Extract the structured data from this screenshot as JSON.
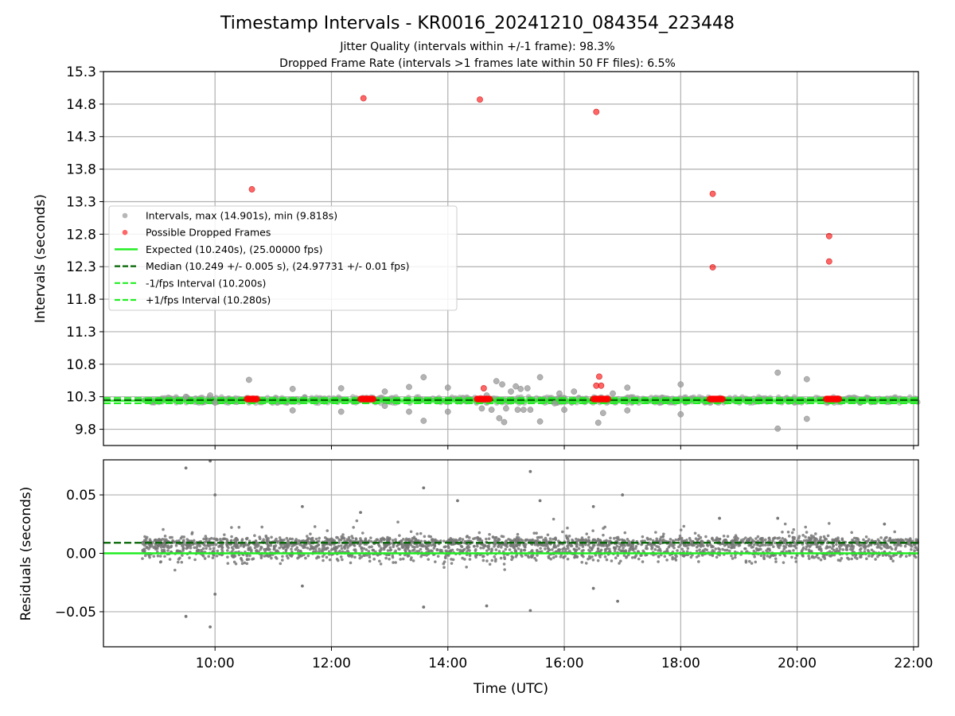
{
  "header": {
    "title": "Timestamp Intervals - KR0016_20241210_084354_223448",
    "subtitle_1": "Jitter Quality (intervals within +/-1 frame): 98.3%",
    "subtitle_2": "Dropped Frame Rate (intervals >1 frames late within 50 FF files): 6.5%"
  },
  "colors": {
    "intervals": "#999999",
    "dropped": "#ff0000",
    "expected": "#22ee22",
    "median": "#006400",
    "fps_band": "#22ee22",
    "residuals": "#777777"
  },
  "chart_data": [
    {
      "type": "scatter",
      "panel": "intervals",
      "ylabel": "Intervals (seconds)",
      "xlim": [
        "08:05",
        "22:05"
      ],
      "ylim": [
        9.55,
        15.3
      ],
      "yticks": [
        "9.8",
        "10.3",
        "10.8",
        "11.3",
        "11.8",
        "12.3",
        "12.8",
        "13.3",
        "13.8",
        "14.3",
        "14.8",
        "15.3"
      ],
      "grid": true,
      "legend_position": "center-left",
      "legend": [
        "Intervals, max (14.901s), min (9.818s)",
        "Possible Dropped Frames",
        "Expected (10.240s), (25.00000 fps)",
        "Median (10.249 +/- 0.005 s), (24.97731 +/- 0.01 fps)",
        "-1/fps Interval (10.200s)",
        "+1/fps Interval (10.280s)"
      ],
      "reference_lines": {
        "expected": 10.24,
        "median": 10.249,
        "minus_1fps": 10.2,
        "plus_1fps": 10.28
      },
      "dense_series": {
        "name": "Intervals",
        "x_start": "08:45",
        "x_end": "22:05",
        "y_min": 10.2,
        "y_max": 10.3
      },
      "interval_outliers": [
        [
          "09:30",
          10.3
        ],
        [
          "09:55",
          10.32
        ],
        [
          "10:00",
          10.21
        ],
        [
          "10:35",
          10.56
        ],
        [
          "11:20",
          10.09
        ],
        [
          "11:20",
          10.42
        ],
        [
          "12:10",
          10.43
        ],
        [
          "12:10",
          10.07
        ],
        [
          "12:55",
          10.16
        ],
        [
          "12:55",
          10.38
        ],
        [
          "13:20",
          10.45
        ],
        [
          "13:20",
          10.07
        ],
        [
          "13:35",
          9.93
        ],
        [
          "13:35",
          10.6
        ],
        [
          "14:00",
          10.44
        ],
        [
          "14:00",
          10.07
        ],
        [
          "14:35",
          10.12
        ],
        [
          "14:40",
          10.32
        ],
        [
          "14:45",
          10.1
        ],
        [
          "14:50",
          10.54
        ],
        [
          "14:53",
          9.97
        ],
        [
          "14:56",
          10.49
        ],
        [
          "14:58",
          9.91
        ],
        [
          "15:00",
          10.12
        ],
        [
          "15:05",
          10.38
        ],
        [
          "15:10",
          10.46
        ],
        [
          "15:12",
          10.1
        ],
        [
          "15:15",
          10.42
        ],
        [
          "15:18",
          10.1
        ],
        [
          "15:22",
          10.43
        ],
        [
          "15:25",
          10.1
        ],
        [
          "15:35",
          10.6
        ],
        [
          "15:35",
          9.92
        ],
        [
          "15:50",
          10.2
        ],
        [
          "15:55",
          10.35
        ],
        [
          "16:00",
          10.1
        ],
        [
          "16:10",
          10.38
        ],
        [
          "16:35",
          9.9
        ],
        [
          "16:40",
          10.05
        ],
        [
          "16:50",
          10.35
        ],
        [
          "17:05",
          10.44
        ],
        [
          "17:05",
          10.09
        ],
        [
          "18:00",
          10.49
        ],
        [
          "18:00",
          10.03
        ],
        [
          "19:40",
          10.67
        ],
        [
          "19:40",
          9.81
        ],
        [
          "20:10",
          10.57
        ],
        [
          "20:10",
          9.96
        ]
      ],
      "dropped_clusters": [
        {
          "x_start": "10:33",
          "x_end": "10:43",
          "y": 10.265
        },
        {
          "x_start": "12:30",
          "x_end": "12:43",
          "y": 10.265
        },
        {
          "x_start": "14:30",
          "x_end": "14:43",
          "y": 10.265
        },
        {
          "x_start": "16:30",
          "x_end": "16:45",
          "y": 10.265
        },
        {
          "x_start": "18:30",
          "x_end": "18:43",
          "y": 10.265
        },
        {
          "x_start": "20:30",
          "x_end": "20:43",
          "y": 10.265
        }
      ],
      "dropped_points": [
        [
          "10:38",
          13.49
        ],
        [
          "12:33",
          14.89
        ],
        [
          "14:33",
          14.87
        ],
        [
          "16:33",
          14.68
        ],
        [
          "18:33",
          13.42
        ],
        [
          "18:33",
          12.29
        ],
        [
          "20:33",
          12.77
        ],
        [
          "20:33",
          12.38
        ],
        [
          "14:37",
          10.43
        ],
        [
          "16:33",
          10.47
        ],
        [
          "16:36",
          10.61
        ],
        [
          "16:38",
          10.47
        ]
      ]
    },
    {
      "type": "scatter",
      "panel": "residuals",
      "xlabel": "Time (UTC)",
      "ylabel": "Residuals (seconds)",
      "xlim": [
        "08:05",
        "22:05"
      ],
      "ylim": [
        -0.08,
        0.08
      ],
      "xticks": [
        "10:00",
        "12:00",
        "14:00",
        "16:00",
        "18:00",
        "20:00",
        "22:00"
      ],
      "yticks": [
        "−0.05",
        "0.00",
        "0.05"
      ],
      "grid": true,
      "reference_lines": {
        "zero": 0.0,
        "median_offset": 0.009
      },
      "dense_series": {
        "name": "Residuals",
        "x_start": "08:45",
        "x_end": "22:05",
        "y_min": -0.01,
        "y_max": 0.02
      },
      "residual_outliers": [
        [
          "09:30",
          0.073
        ],
        [
          "09:30",
          -0.054
        ],
        [
          "09:55",
          0.079
        ],
        [
          "09:55",
          -0.063
        ],
        [
          "10:00",
          0.05
        ],
        [
          "10:00",
          -0.035
        ],
        [
          "11:30",
          0.04
        ],
        [
          "11:30",
          -0.028
        ],
        [
          "13:35",
          0.056
        ],
        [
          "13:35",
          -0.046
        ],
        [
          "15:25",
          0.07
        ],
        [
          "15:25",
          -0.049
        ],
        [
          "15:35",
          0.045
        ],
        [
          "16:30",
          0.04
        ],
        [
          "16:30",
          -0.03
        ],
        [
          "16:55",
          -0.041
        ],
        [
          "17:00",
          0.05
        ],
        [
          "14:40",
          -0.045
        ],
        [
          "14:10",
          0.045
        ],
        [
          "12:30",
          0.035
        ],
        [
          "18:40",
          0.03
        ],
        [
          "19:40",
          0.03
        ],
        [
          "21:30",
          0.025
        ]
      ]
    }
  ]
}
